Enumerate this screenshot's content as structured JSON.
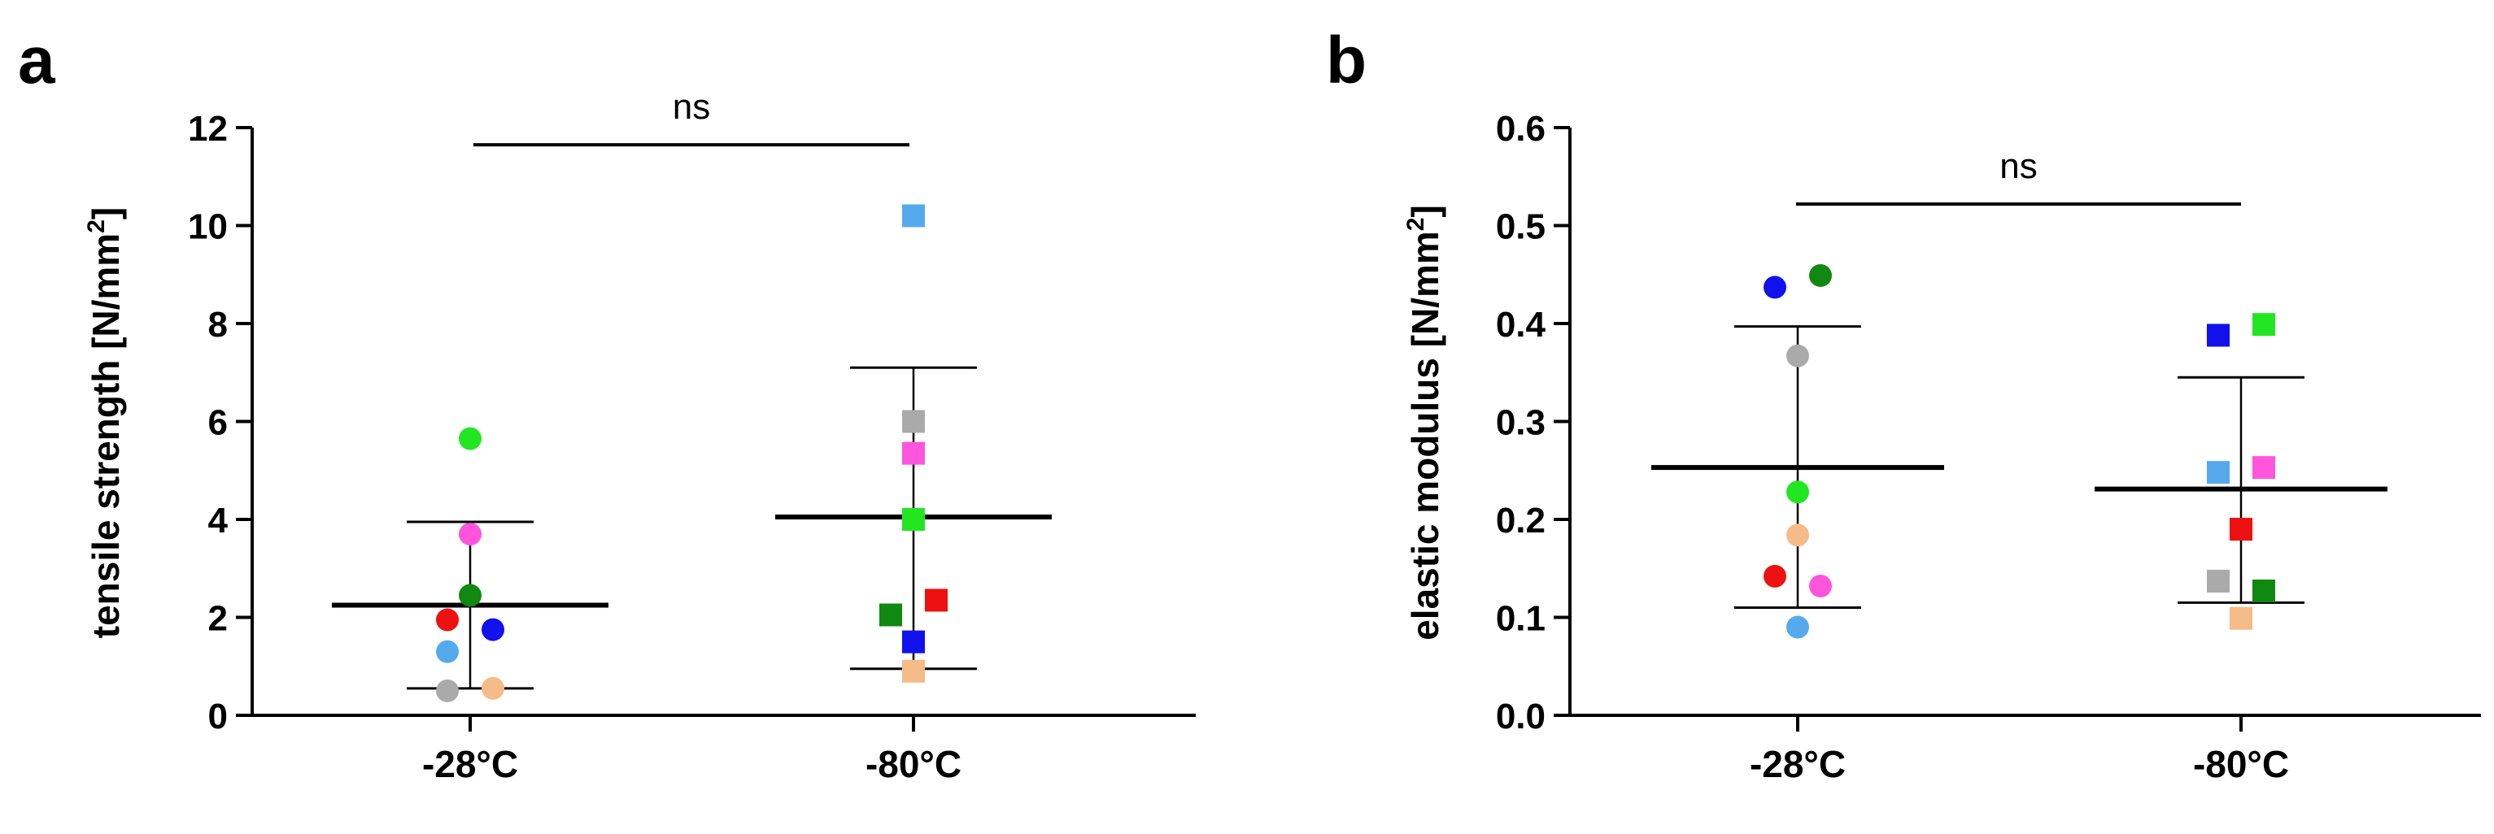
{
  "chart_data": [
    {
      "panel": "a",
      "type": "scatter",
      "title": "",
      "xlabel": "",
      "ylabel": "tensile strength [N/mm",
      "ylabel_sup": "2",
      "ylabel_close": "]",
      "ylim": [
        0,
        12
      ],
      "yticks": [
        0,
        2,
        4,
        6,
        8,
        10,
        12
      ],
      "categories": [
        "-28°C",
        "-80°C"
      ],
      "groups": [
        {
          "name": "-28°C",
          "marker": "circle",
          "mean": 2.25,
          "sd_upper": 3.95,
          "sd_lower": 0.55,
          "points": [
            {
              "value": 5.65,
              "color": "#22e622",
              "offset": 0
            },
            {
              "value": 3.7,
              "color": "#ff55dd",
              "offset": 0
            },
            {
              "value": 2.45,
              "color": "#118811",
              "offset": 0
            },
            {
              "value": 1.95,
              "color": "#ee1111",
              "offset": -1
            },
            {
              "value": 1.75,
              "color": "#1111ee",
              "offset": 1
            },
            {
              "value": 1.3,
              "color": "#55aaee",
              "offset": -1
            },
            {
              "value": 0.5,
              "color": "#aaaaaa",
              "offset": -1
            },
            {
              "value": 0.55,
              "color": "#f5bb88",
              "offset": 1
            }
          ]
        },
        {
          "name": "-80°C",
          "marker": "square",
          "mean": 4.05,
          "sd_upper": 7.1,
          "sd_lower": 0.95,
          "points": [
            {
              "value": 10.2,
              "color": "#55aaee",
              "offset": 0
            },
            {
              "value": 6.0,
              "color": "#aaaaaa",
              "offset": 0
            },
            {
              "value": 5.35,
              "color": "#ff55dd",
              "offset": 0
            },
            {
              "value": 4.0,
              "color": "#22e622",
              "offset": 0
            },
            {
              "value": 2.05,
              "color": "#118811",
              "offset": -1
            },
            {
              "value": 2.35,
              "color": "#ee1111",
              "offset": 1
            },
            {
              "value": 1.5,
              "color": "#1111ee",
              "offset": 0
            },
            {
              "value": 0.9,
              "color": "#f5bb88",
              "offset": 0
            }
          ]
        }
      ],
      "significance": {
        "label": "ns",
        "y": 11.65
      }
    },
    {
      "panel": "b",
      "type": "scatter",
      "title": "",
      "xlabel": "",
      "ylabel": "elastic modulus [N/mm",
      "ylabel_sup": "2",
      "ylabel_close": "]",
      "ylim": [
        0,
        0.6
      ],
      "yticks": [
        0.0,
        0.1,
        0.2,
        0.3,
        0.4,
        0.5,
        0.6
      ],
      "categories": [
        "-28°C",
        "-80°C"
      ],
      "groups": [
        {
          "name": "-28°C",
          "marker": "circle",
          "mean": 0.253,
          "sd_upper": 0.397,
          "sd_lower": 0.11,
          "points": [
            {
              "value": 0.437,
              "color": "#1111ee",
              "offset": -1
            },
            {
              "value": 0.449,
              "color": "#118811",
              "offset": 1
            },
            {
              "value": 0.367,
              "color": "#aaaaaa",
              "offset": 0
            },
            {
              "value": 0.228,
              "color": "#22e622",
              "offset": 0
            },
            {
              "value": 0.184,
              "color": "#f5bb88",
              "offset": 0
            },
            {
              "value": 0.142,
              "color": "#ee1111",
              "offset": -1
            },
            {
              "value": 0.132,
              "color": "#ff55dd",
              "offset": 1
            },
            {
              "value": 0.09,
              "color": "#55aaee",
              "offset": 0
            }
          ]
        },
        {
          "name": "-80°C",
          "marker": "square",
          "mean": 0.231,
          "sd_upper": 0.345,
          "sd_lower": 0.115,
          "points": [
            {
              "value": 0.388,
              "color": "#1111ee",
              "offset": -1
            },
            {
              "value": 0.399,
              "color": "#22e622",
              "offset": 1
            },
            {
              "value": 0.248,
              "color": "#55aaee",
              "offset": -1
            },
            {
              "value": 0.253,
              "color": "#ff55dd",
              "offset": 1
            },
            {
              "value": 0.19,
              "color": "#ee1111",
              "offset": 0
            },
            {
              "value": 0.137,
              "color": "#aaaaaa",
              "offset": -1
            },
            {
              "value": 0.127,
              "color": "#118811",
              "offset": 1
            },
            {
              "value": 0.099,
              "color": "#f5bb88",
              "offset": 0
            }
          ]
        }
      ],
      "significance": {
        "label": "ns",
        "y": 0.522
      }
    }
  ]
}
